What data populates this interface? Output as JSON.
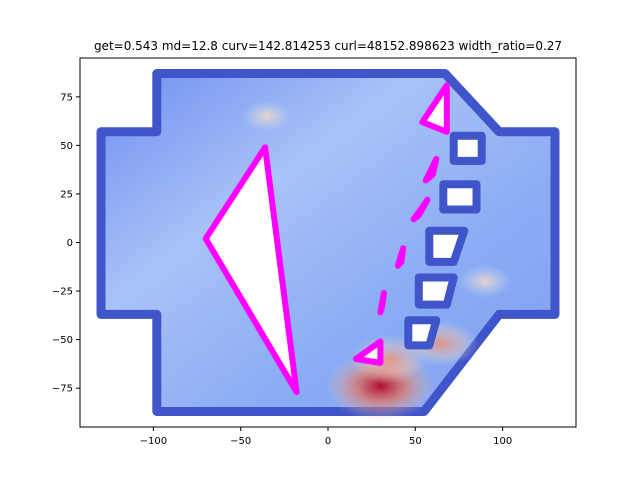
{
  "chart_data": {
    "type": "scatter",
    "title": "get=0.543 md=12.8 curv=142.814253 curl=48152.898623 width_ratio=0.27",
    "xlabel": "",
    "ylabel": "",
    "xlim": [
      -142,
      142
    ],
    "ylim": [
      -95,
      95
    ],
    "x_ticks": [
      -100,
      -50,
      0,
      50,
      100
    ],
    "y_ticks": [
      -75,
      -50,
      -25,
      0,
      25,
      50,
      75
    ],
    "x_tick_labels": [
      "−100",
      "−50",
      "0",
      "50",
      "100"
    ],
    "y_tick_labels": [
      "−75",
      "−50",
      "−25",
      "0",
      "25",
      "50",
      "75"
    ],
    "grid": false,
    "colormap": "coolwarm",
    "colors": {
      "domain_boundary": "#3f55c9",
      "domain_fill": "#8fadf4",
      "obstacle_outline": "#ff00ff",
      "obstacle_fill": "#ffffff",
      "hot": "#b40426",
      "warm": "#f08f6e"
    },
    "domain_outline": [
      [
        -130,
        57
      ],
      [
        -98,
        57
      ],
      [
        -98,
        87
      ],
      [
        67,
        87
      ],
      [
        98,
        57
      ],
      [
        130,
        57
      ],
      [
        130,
        -37
      ],
      [
        98,
        -37
      ],
      [
        98,
        -37
      ],
      [
        55,
        -87
      ],
      [
        -98,
        -87
      ],
      [
        -98,
        -37
      ],
      [
        -130,
        -37
      ]
    ],
    "obstacles": [
      {
        "name": "large-triangle",
        "points": [
          [
            -70,
            2
          ],
          [
            -36,
            49
          ],
          [
            -18,
            -77
          ]
        ]
      },
      {
        "name": "upper-small-triangle",
        "points": [
          [
            68,
            81
          ],
          [
            54,
            62
          ],
          [
            68,
            57
          ]
        ]
      },
      {
        "name": "small-triangle-2",
        "points": [
          [
            62,
            43
          ],
          [
            60,
            35
          ],
          [
            56,
            32
          ]
        ]
      },
      {
        "name": "small-triangle-3",
        "points": [
          [
            57,
            22
          ],
          [
            52,
            14
          ],
          [
            49,
            12
          ]
        ]
      },
      {
        "name": "small-triangle-4",
        "points": [
          [
            43,
            -3
          ],
          [
            42,
            -10
          ],
          [
            40,
            -12
          ]
        ]
      },
      {
        "name": "small-triangle-5",
        "points": [
          [
            32,
            -26
          ],
          [
            31,
            -33
          ],
          [
            30,
            -36
          ]
        ]
      },
      {
        "name": "lower-small-triangle",
        "points": [
          [
            30,
            -51
          ],
          [
            30,
            -62
          ],
          [
            16,
            -60
          ]
        ]
      }
    ],
    "channels": [
      [
        [
          72,
          55
        ],
        [
          88,
          55
        ],
        [
          88,
          42
        ],
        [
          72,
          42
        ]
      ],
      [
        [
          66,
          30
        ],
        [
          85,
          30
        ],
        [
          85,
          17
        ],
        [
          66,
          17
        ]
      ],
      [
        [
          58,
          6
        ],
        [
          78,
          6
        ],
        [
          72,
          -10
        ],
        [
          58,
          -10
        ]
      ],
      [
        [
          52,
          -18
        ],
        [
          72,
          -18
        ],
        [
          68,
          -32
        ],
        [
          52,
          -32
        ]
      ],
      [
        [
          46,
          -40
        ],
        [
          62,
          -40
        ],
        [
          58,
          -53
        ],
        [
          46,
          -53
        ]
      ]
    ],
    "hotspots": [
      {
        "x": 30,
        "y": -74,
        "intensity": 1.0
      },
      {
        "x": 65,
        "y": -52,
        "intensity": 0.55
      },
      {
        "x": 90,
        "y": -20,
        "intensity": 0.3
      },
      {
        "x": 35,
        "y": -60,
        "intensity": 0.6
      },
      {
        "x": -35,
        "y": 65,
        "intensity": 0.25
      }
    ]
  }
}
